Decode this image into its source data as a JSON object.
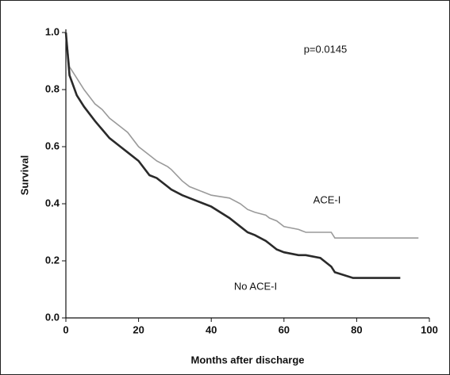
{
  "chart_data": {
    "type": "line",
    "x_label": "Months after discharge",
    "y_label": "Survival",
    "annotations": [
      "p=0.0145",
      "ACE-I",
      "No ACE-I"
    ],
    "xlim": [
      0,
      100
    ],
    "ylim": [
      0,
      1
    ],
    "xticks": [
      0,
      20,
      40,
      60,
      80,
      100
    ],
    "yticks": [
      {
        "value": 0,
        "label": "0.0"
      },
      0.2,
      0.4,
      0.6,
      0.8,
      {
        "value": 1,
        "label": "1.0"
      }
    ],
    "x": [
      0,
      1,
      3,
      5,
      8,
      10,
      12,
      15,
      17,
      20,
      23,
      25,
      28,
      29,
      32,
      34,
      36,
      40,
      45,
      48,
      50,
      52,
      55,
      56,
      58,
      60,
      64,
      66,
      70,
      72,
      73,
      74,
      79,
      92,
      97
    ],
    "series": [
      {
        "name": "ACE-I",
        "color": "#9a9a9a",
        "values": [
          1.0,
          0.88,
          0.84,
          0.8,
          0.75,
          0.73,
          0.7,
          0.67,
          0.65,
          0.6,
          0.57,
          0.55,
          0.53,
          0.52,
          0.48,
          0.46,
          0.45,
          0.43,
          0.42,
          0.4,
          0.38,
          0.37,
          0.36,
          0.35,
          0.34,
          0.32,
          0.31,
          0.3,
          0.3,
          0.3,
          0.3,
          0.28,
          0.28,
          0.28,
          0.28
        ]
      },
      {
        "name": "No ACE-I",
        "color": "#2a2a2a",
        "values": [
          1.0,
          0.85,
          0.78,
          0.74,
          0.69,
          0.66,
          0.63,
          0.6,
          0.58,
          0.55,
          0.5,
          0.49,
          0.46,
          0.45,
          0.43,
          0.42,
          0.41,
          0.39,
          0.35,
          0.32,
          0.3,
          0.29,
          0.27,
          0.26,
          0.24,
          0.23,
          0.22,
          0.22,
          0.21,
          0.19,
          0.18,
          0.16,
          0.14,
          0.14,
          null
        ]
      }
    ]
  }
}
